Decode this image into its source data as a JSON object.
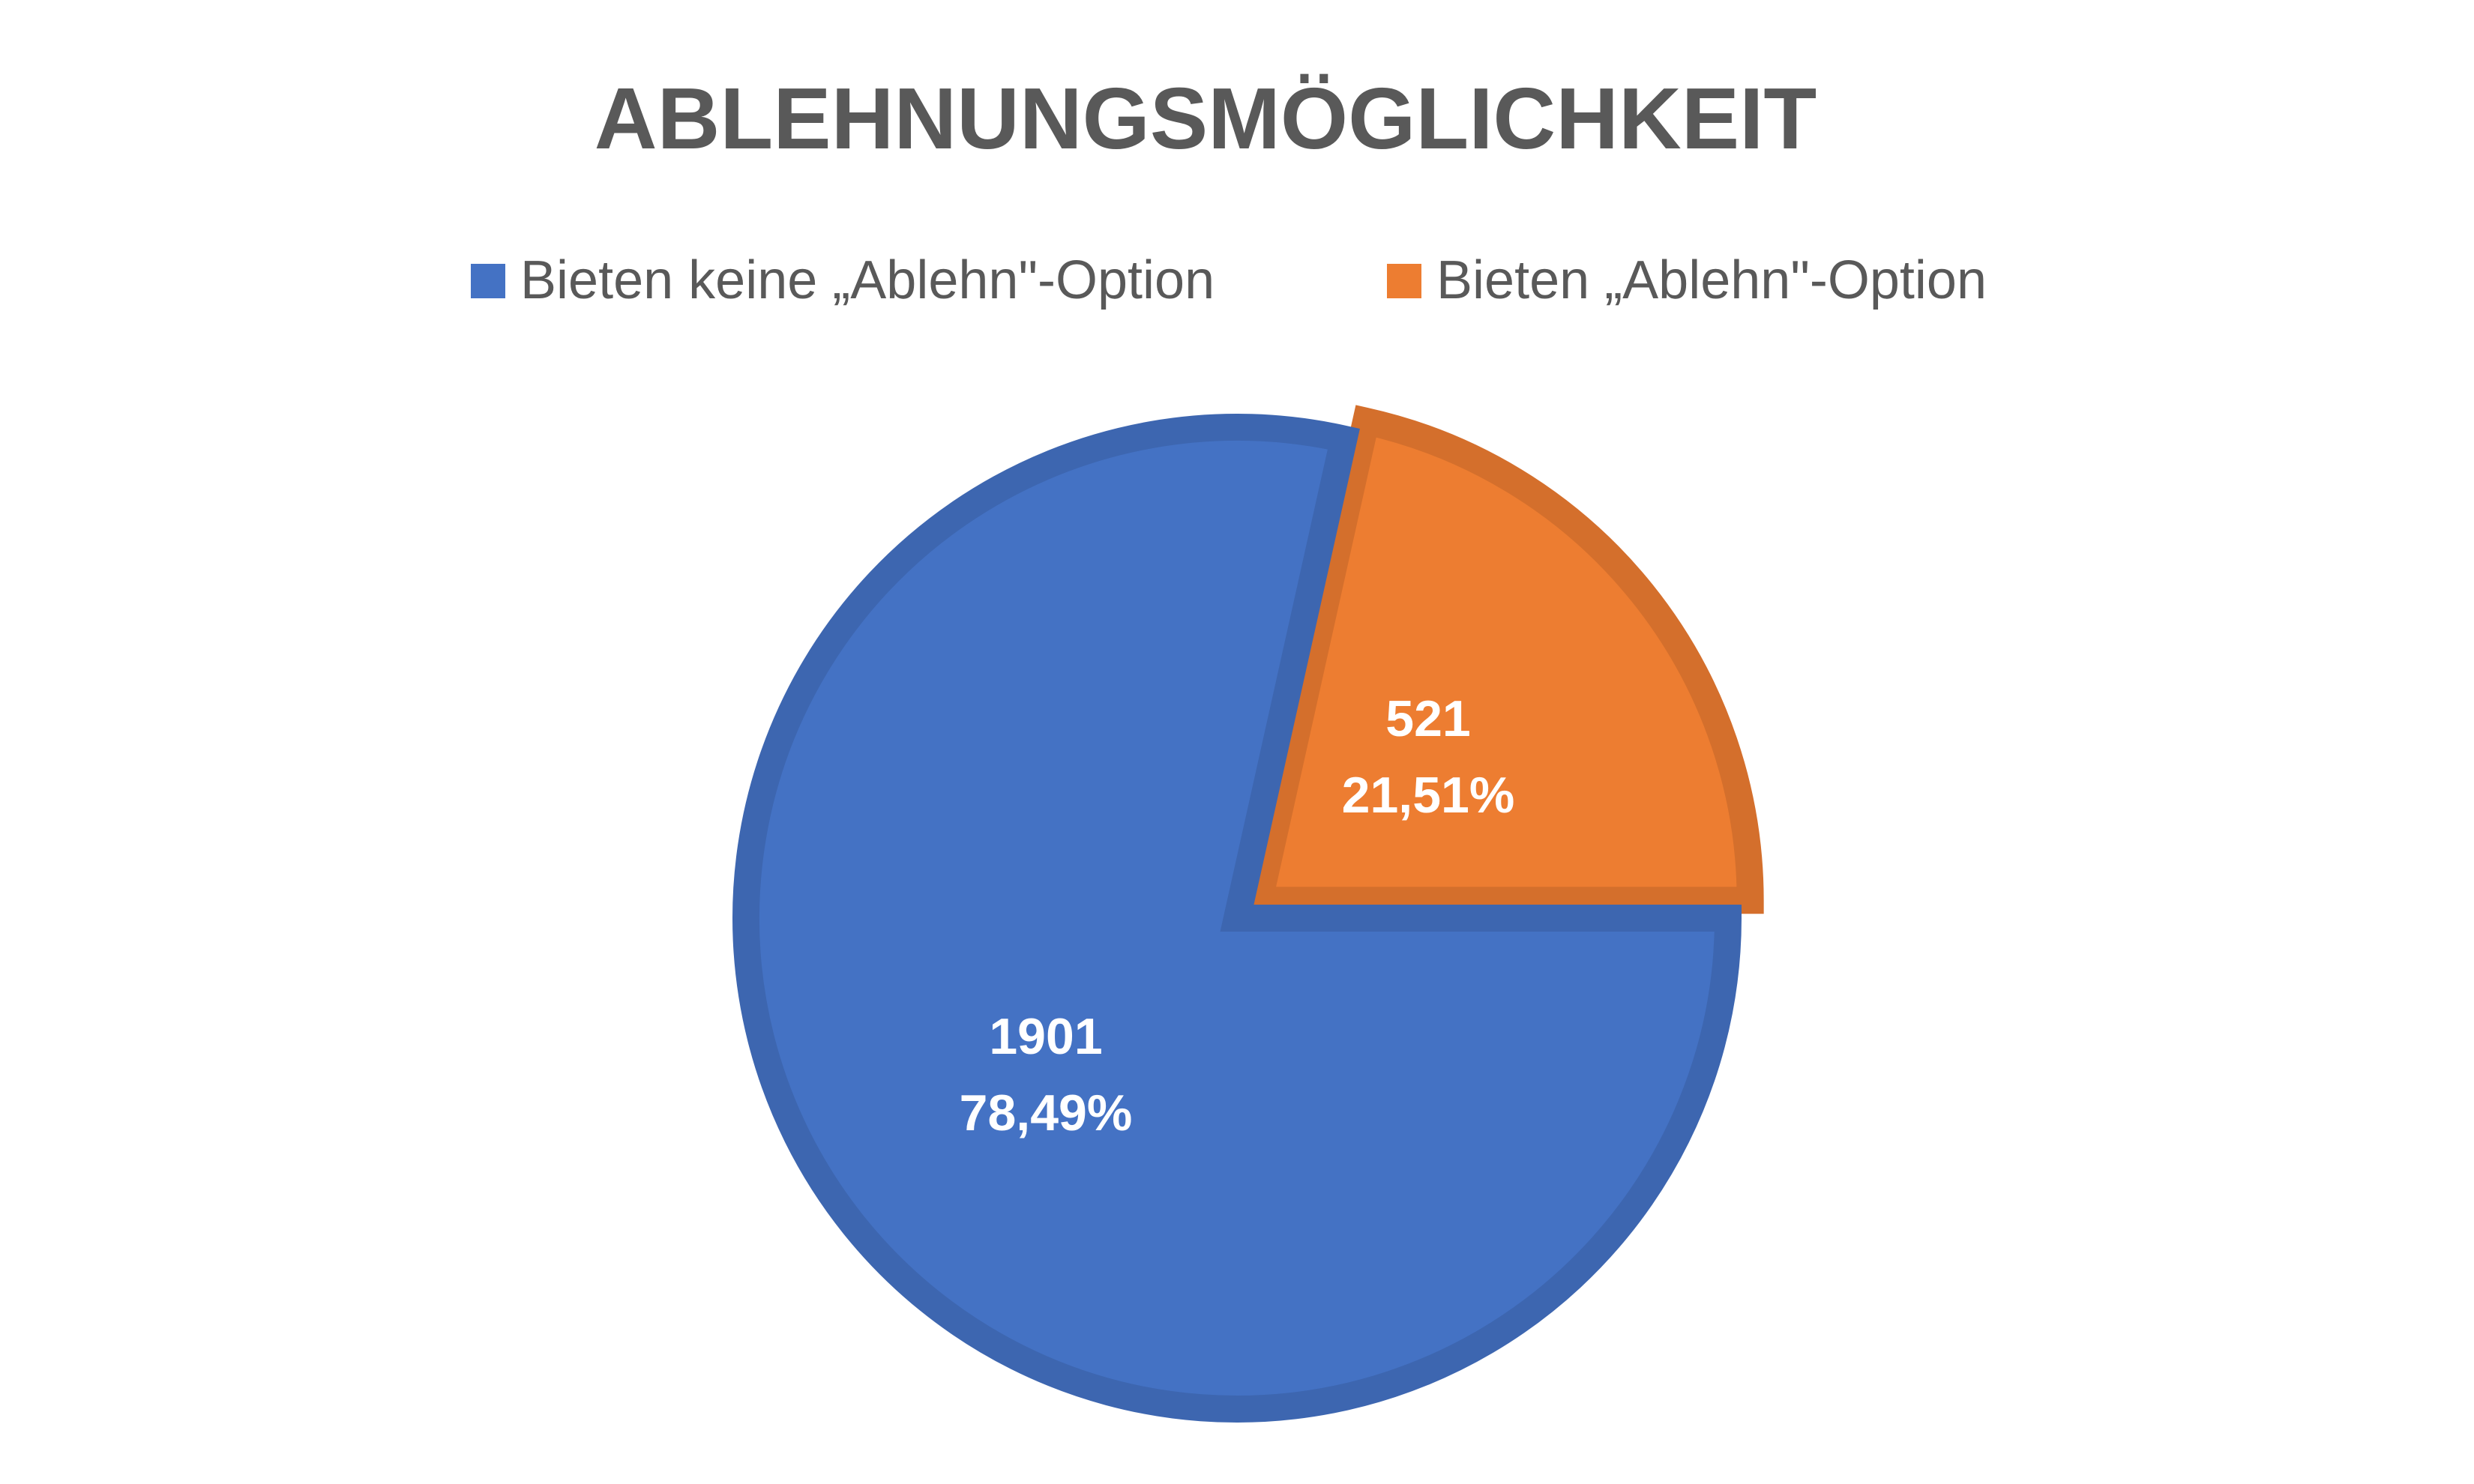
{
  "chart_data": {
    "type": "pie",
    "title": "ABLEHNUNGSMÖGLICHKEIT",
    "legend_position": "top",
    "slices": [
      {
        "label": "Bieten keine „Ablehn\"-Option",
        "value": 1901,
        "percent_label": "78,49%",
        "color": "#4472C4",
        "border_color": "#3D66B0"
      },
      {
        "label": "Bieten „Ablehn\"-Option",
        "value": 521,
        "percent_label": "21,51%",
        "color": "#ED7D31",
        "border_color": "#D46F2C"
      }
    ]
  }
}
